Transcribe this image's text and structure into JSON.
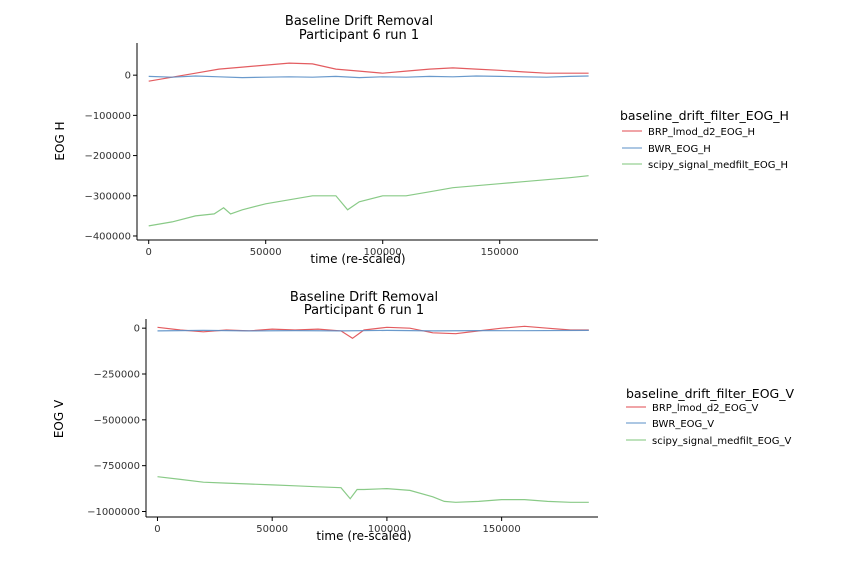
{
  "chart_data": [
    {
      "type": "line",
      "title": "Baseline Drift Removal",
      "subtitle": "Participant 6 run 1",
      "xlabel": "time (re-scaled)",
      "ylabel": "EOG H",
      "xlim": [
        -5000,
        192000
      ],
      "ylim": [
        -410000,
        80000
      ],
      "x_ticks": [
        0,
        50000,
        100000,
        150000
      ],
      "y_ticks": [
        0,
        -100000,
        -200000,
        -300000,
        -400000
      ],
      "y_tick_labels": [
        "0",
        "−100000",
        "−200000",
        "−300000",
        "−400000"
      ],
      "legend": {
        "title": "baseline_drift_filter_EOG_H",
        "position": "right",
        "entries": [
          "BRP_lmod_d2_EOG_H",
          "BWR_EOG_H",
          "scipy_signal_medfilt_EOG_H"
        ]
      },
      "series": [
        {
          "name": "BRP_lmod_d2_EOG_H",
          "color": "#e04a4f",
          "x": [
            0,
            10000,
            20000,
            30000,
            40000,
            50000,
            60000,
            70000,
            80000,
            90000,
            100000,
            110000,
            120000,
            130000,
            140000,
            150000,
            160000,
            170000,
            180000,
            188000
          ],
          "y": [
            -15000,
            -5000,
            5000,
            15000,
            20000,
            25000,
            30000,
            28000,
            15000,
            10000,
            5000,
            10000,
            15000,
            18000,
            15000,
            12000,
            8000,
            5000,
            5000,
            5000
          ]
        },
        {
          "name": "BWR_EOG_H",
          "color": "#5a8fc7",
          "x": [
            0,
            10000,
            20000,
            30000,
            40000,
            50000,
            60000,
            70000,
            80000,
            90000,
            100000,
            110000,
            120000,
            130000,
            140000,
            150000,
            160000,
            170000,
            180000,
            188000
          ],
          "y": [
            -3000,
            -5000,
            -2000,
            -4000,
            -6000,
            -5000,
            -4000,
            -5000,
            -3000,
            -6000,
            -4000,
            -5000,
            -3000,
            -4000,
            -2000,
            -3000,
            -4000,
            -5000,
            -3000,
            -2000
          ]
        },
        {
          "name": "scipy_signal_medfilt_EOG_H",
          "color": "#7cc47a",
          "x": [
            0,
            10000,
            20000,
            28000,
            32000,
            35000,
            40000,
            50000,
            60000,
            70000,
            80000,
            85000,
            90000,
            100000,
            110000,
            120000,
            130000,
            140000,
            150000,
            160000,
            170000,
            180000,
            188000
          ],
          "y": [
            -375000,
            -365000,
            -350000,
            -345000,
            -330000,
            -345000,
            -335000,
            -320000,
            -310000,
            -300000,
            -300000,
            -335000,
            -315000,
            -300000,
            -300000,
            -290000,
            -280000,
            -275000,
            -270000,
            -265000,
            -260000,
            -255000,
            -250000
          ]
        }
      ]
    },
    {
      "type": "line",
      "title": "Baseline Drift Removal",
      "subtitle": "Participant 6 run 1",
      "xlabel": "time (re-scaled)",
      "ylabel": "EOG V",
      "xlim": [
        -5000,
        192000
      ],
      "ylim": [
        -1030000,
        50000
      ],
      "x_ticks": [
        0,
        50000,
        100000,
        150000
      ],
      "y_ticks": [
        0,
        -250000,
        -500000,
        -750000,
        -1000000
      ],
      "y_tick_labels": [
        "0",
        "−250000",
        "−500000",
        "−750000",
        "−1000000"
      ],
      "legend": {
        "title": "baseline_drift_filter_EOG_V",
        "position": "right",
        "entries": [
          "BRP_lmod_d2_EOG_V",
          "BWR_EOG_V",
          "scipy_signal_medfilt_EOG_V"
        ]
      },
      "series": [
        {
          "name": "BRP_lmod_d2_EOG_V",
          "color": "#e04a4f",
          "x": [
            0,
            10000,
            20000,
            30000,
            40000,
            50000,
            60000,
            70000,
            80000,
            85000,
            90000,
            100000,
            110000,
            120000,
            130000,
            140000,
            150000,
            160000,
            170000,
            180000,
            188000
          ],
          "y": [
            5000,
            -10000,
            -20000,
            -10000,
            -15000,
            -5000,
            -10000,
            -5000,
            -15000,
            -55000,
            -10000,
            5000,
            0,
            -25000,
            -30000,
            -15000,
            0,
            10000,
            0,
            -10000,
            -10000
          ]
        },
        {
          "name": "BWR_EOG_V",
          "color": "#5a8fc7",
          "x": [
            0,
            20000,
            40000,
            60000,
            80000,
            100000,
            120000,
            140000,
            160000,
            188000
          ],
          "y": [
            -15000,
            -12000,
            -15000,
            -13000,
            -15000,
            -12000,
            -15000,
            -13000,
            -14000,
            -12000
          ]
        },
        {
          "name": "scipy_signal_medfilt_EOG_V",
          "color": "#7cc47a",
          "x": [
            0,
            10000,
            20000,
            30000,
            40000,
            50000,
            60000,
            70000,
            80000,
            84000,
            87000,
            90000,
            100000,
            110000,
            120000,
            125000,
            130000,
            140000,
            150000,
            160000,
            170000,
            180000,
            188000
          ],
          "y": [
            -810000,
            -825000,
            -840000,
            -845000,
            -850000,
            -855000,
            -860000,
            -865000,
            -870000,
            -930000,
            -880000,
            -880000,
            -875000,
            -885000,
            -920000,
            -945000,
            -950000,
            -945000,
            -935000,
            -935000,
            -945000,
            -950000,
            -950000
          ]
        }
      ]
    }
  ]
}
